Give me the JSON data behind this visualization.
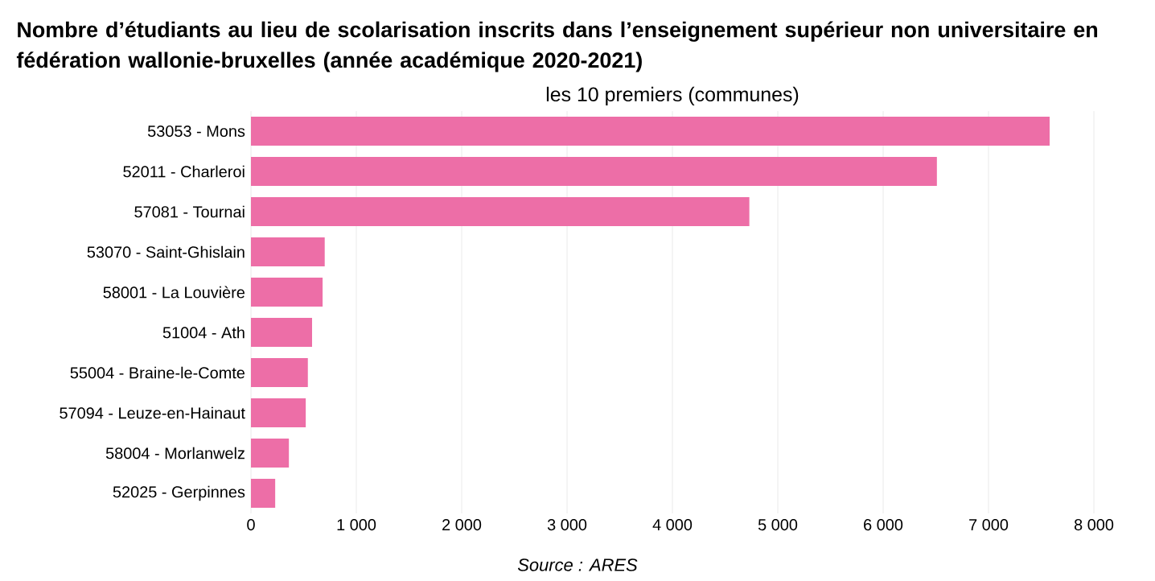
{
  "chart_data": {
    "type": "bar",
    "orientation": "horizontal",
    "title": "Nombre d’étudiants au lieu de scolarisation inscrits dans l’enseignement supérieur non universitaire en fédération wallonie-bruxelles (année académique 2020-2021)",
    "subtitle": "les 10 premiers (communes)",
    "categories": [
      "53053 - Mons",
      "52011 - Charleroi",
      "57081 - Tournai",
      "53070 - Saint-Ghislain",
      "58001 - La Louvière",
      "51004 - Ath",
      "55004 - Braine-le-Comte",
      "57094 - Leuze-en-Hainaut",
      "58004 - Morlanwelz",
      "52025 - Gerpinnes"
    ],
    "values": [
      7580,
      6510,
      4730,
      700,
      680,
      580,
      540,
      520,
      360,
      230
    ],
    "color": "#ed6ea7",
    "xlim": [
      0,
      8000
    ],
    "xticks": [
      {
        "value": 0,
        "label": "0"
      },
      {
        "value": 1000,
        "label": "1 000"
      },
      {
        "value": 2000,
        "label": "2 000"
      },
      {
        "value": 3000,
        "label": "3 000"
      },
      {
        "value": 4000,
        "label": "4 000"
      },
      {
        "value": 5000,
        "label": "5 000"
      },
      {
        "value": 6000,
        "label": "6 000"
      },
      {
        "value": 7000,
        "label": "7 000"
      },
      {
        "value": 8000,
        "label": "8 000"
      }
    ],
    "grid": "x",
    "annotations": [
      "Source : ARES"
    ]
  }
}
